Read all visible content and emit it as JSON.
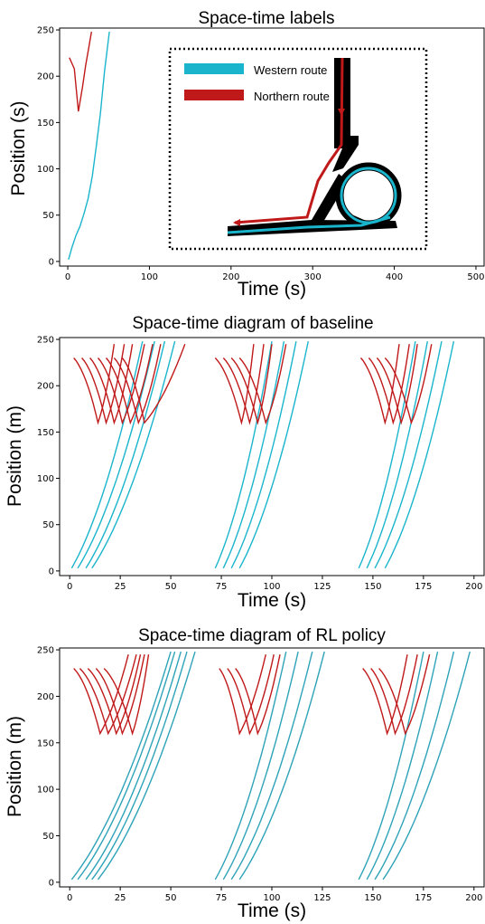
{
  "colors": {
    "western": "#1ab5cc",
    "northern": "#c0191a",
    "policy_western": "#2ea3b8"
  },
  "chart_data": [
    {
      "type": "line",
      "title": "Space-time labels",
      "xlabel": "Time (s)",
      "ylabel": "Position (s)",
      "xlim": [
        -10,
        510
      ],
      "ylim": [
        -5,
        252
      ],
      "xticks": [
        0,
        100,
        200,
        300,
        400,
        500
      ],
      "yticks": [
        0,
        50,
        100,
        150,
        200,
        250
      ],
      "legend": {
        "placement": "inset-right",
        "entries": [
          {
            "label": "Western route",
            "color": "#1ab5cc"
          },
          {
            "label": "Northern route",
            "color": "#c0191a"
          }
        ]
      },
      "series": [
        {
          "route": "western",
          "x": [
            1,
            5,
            10,
            15,
            20,
            25,
            30,
            35,
            40,
            45,
            51
          ],
          "y": [
            2,
            15,
            28,
            38,
            52,
            68,
            92,
            125,
            160,
            205,
            248
          ]
        },
        {
          "route": "northern",
          "x": [
            2,
            8,
            13,
            18,
            22,
            26,
            29
          ],
          "y": [
            220,
            208,
            162,
            188,
            212,
            232,
            248
          ]
        }
      ]
    },
    {
      "type": "line",
      "title": "Space-time diagram of baseline",
      "xlabel": "Time (s)",
      "ylabel": "Position (m)",
      "xlim": [
        -5,
        205
      ],
      "ylim": [
        -5,
        252
      ],
      "xticks": [
        0,
        25,
        50,
        75,
        100,
        125,
        150,
        175,
        200
      ],
      "yticks": [
        0,
        50,
        100,
        150,
        200,
        250
      ],
      "groups": [
        {
          "western_start": [
            1,
            4,
            8,
            11
          ],
          "western_end": [
            36,
            42,
            47,
            52
          ],
          "northern_start": [
            2,
            6,
            10,
            14,
            18,
            22,
            26
          ],
          "northern_min_t": [
            14,
            18,
            22,
            26,
            30,
            34,
            37
          ],
          "northern_end": [
            22,
            27,
            31,
            37,
            41,
            45,
            57
          ]
        },
        {
          "western_start": [
            72,
            76,
            80,
            84
          ],
          "western_end": [
            100,
            106,
            112,
            118
          ],
          "northern_start": [
            72,
            76,
            80,
            84
          ],
          "northern_min_t": [
            85,
            89,
            93,
            97
          ],
          "northern_end": [
            91,
            96,
            100,
            107
          ]
        },
        {
          "western_start": [
            143,
            147,
            151,
            156
          ],
          "western_end": [
            171,
            177,
            184,
            190
          ],
          "northern_start": [
            144,
            148,
            152,
            156
          ],
          "northern_min_t": [
            156,
            160,
            164,
            169
          ],
          "northern_end": [
            163,
            168,
            172,
            179
          ]
        }
      ]
    },
    {
      "type": "line",
      "title": "Space-time diagram of RL policy",
      "xlabel": "Time (s)",
      "ylabel": "Position (m)",
      "xlim": [
        -5,
        205
      ],
      "ylim": [
        -5,
        252
      ],
      "xticks": [
        0,
        25,
        50,
        75,
        100,
        125,
        150,
        175,
        200
      ],
      "yticks": [
        0,
        50,
        100,
        150,
        200,
        250
      ],
      "groups": [
        {
          "western_start": [
            1,
            4,
            8,
            11,
            14
          ],
          "western_end": [
            50,
            52,
            55,
            58,
            62
          ],
          "northern_start": [
            2,
            5,
            9,
            13,
            17
          ],
          "northern_min_t": [
            15,
            19,
            23,
            26,
            31
          ],
          "northern_end": [
            29,
            33,
            35,
            37,
            39
          ]
        },
        {
          "western_start": [
            72,
            76,
            80,
            84
          ],
          "western_end": [
            107,
            113,
            120,
            126
          ],
          "northern_start": [
            74,
            78,
            82
          ],
          "northern_min_t": [
            84,
            89,
            93
          ],
          "northern_end": [
            97,
            101,
            104
          ]
        },
        {
          "western_start": [
            143,
            147,
            151,
            155
          ],
          "western_end": [
            175,
            182,
            190,
            198
          ],
          "northern_start": [
            145,
            149,
            153
          ],
          "northern_min_t": [
            157,
            161,
            166
          ],
          "northern_end": [
            167,
            172,
            178
          ]
        }
      ]
    }
  ]
}
